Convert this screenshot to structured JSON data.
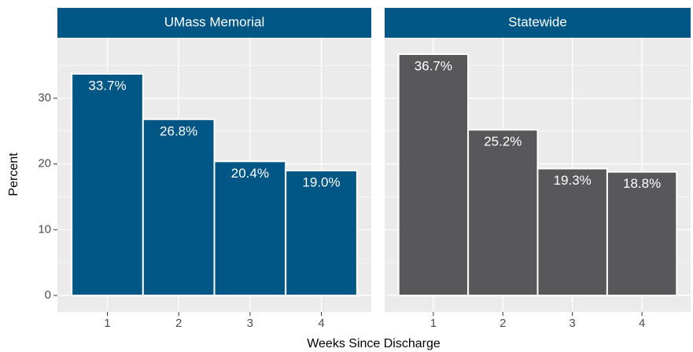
{
  "chart_data": [
    {
      "type": "bar",
      "title": "UMass Memorial",
      "categories": [
        "1",
        "2",
        "3",
        "4"
      ],
      "values": [
        33.7,
        26.8,
        20.4,
        19.0
      ],
      "value_labels": [
        "33.7%",
        "26.8%",
        "20.4%",
        "19.0%"
      ],
      "color": "#005684",
      "ylim": [
        -2.5,
        39.2
      ],
      "yticks": [
        0,
        10,
        20,
        30
      ],
      "grid": true
    },
    {
      "type": "bar",
      "title": "Statewide",
      "categories": [
        "1",
        "2",
        "3",
        "4"
      ],
      "values": [
        36.7,
        25.2,
        19.3,
        18.8
      ],
      "value_labels": [
        "36.7%",
        "25.2%",
        "19.3%",
        "18.8%"
      ],
      "color": "#58585b",
      "ylim": [
        -2.5,
        39.2
      ],
      "yticks": [
        0,
        10,
        20,
        30
      ],
      "grid": true
    }
  ],
  "x_label": "Weeks Since Discharge",
  "y_label": "Percent"
}
